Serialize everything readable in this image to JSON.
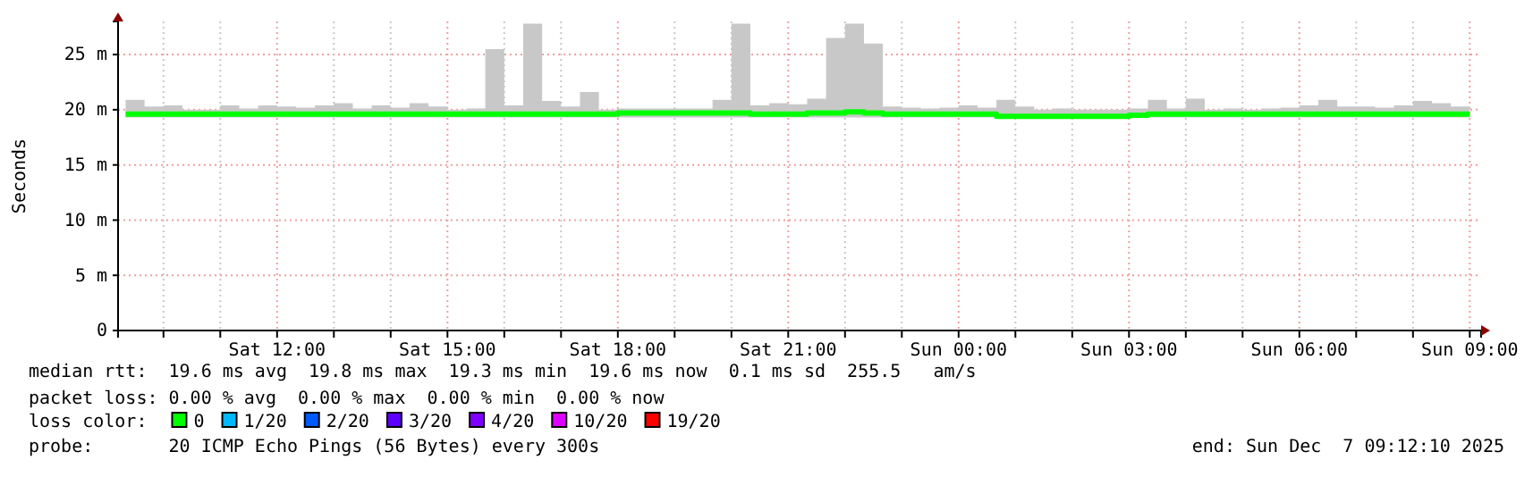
{
  "chart_data": {
    "type": "line",
    "ylabel": "Seconds",
    "legend_title": "loss color:",
    "legend": "bottom",
    "grid": true,
    "xlim": [
      "2025-12-06T09:12",
      "2025-12-07T09:12"
    ],
    "xticks": [
      {
        "value": "2025-12-06T10:00",
        "label": null
      },
      {
        "value": "2025-12-06T11:00",
        "label": null
      },
      {
        "value": "2025-12-06T12:00",
        "label": "Sat 12:00"
      },
      {
        "value": "2025-12-06T13:00",
        "label": null
      },
      {
        "value": "2025-12-06T14:00",
        "label": null
      },
      {
        "value": "2025-12-06T15:00",
        "label": "Sat 15:00"
      },
      {
        "value": "2025-12-06T16:00",
        "label": null
      },
      {
        "value": "2025-12-06T17:00",
        "label": null
      },
      {
        "value": "2025-12-06T18:00",
        "label": "Sat 18:00"
      },
      {
        "value": "2025-12-06T19:00",
        "label": null
      },
      {
        "value": "2025-12-06T20:00",
        "label": null
      },
      {
        "value": "2025-12-06T21:00",
        "label": "Sat 21:00"
      },
      {
        "value": "2025-12-06T22:00",
        "label": null
      },
      {
        "value": "2025-12-06T23:00",
        "label": null
      },
      {
        "value": "2025-12-07T00:00",
        "label": "Sun 00:00"
      },
      {
        "value": "2025-12-07T01:00",
        "label": null
      },
      {
        "value": "2025-12-07T02:00",
        "label": null
      },
      {
        "value": "2025-12-07T03:00",
        "label": "Sun 03:00"
      },
      {
        "value": "2025-12-07T04:00",
        "label": null
      },
      {
        "value": "2025-12-07T05:00",
        "label": null
      },
      {
        "value": "2025-12-07T06:00",
        "label": "Sun 06:00"
      },
      {
        "value": "2025-12-07T07:00",
        "label": null
      },
      {
        "value": "2025-12-07T08:00",
        "label": null
      },
      {
        "value": "2025-12-07T09:00",
        "label": "Sun 09:00"
      }
    ],
    "ylim": [
      0,
      28
    ],
    "yticks": [
      {
        "value": 0,
        "label": "0"
      },
      {
        "value": 5,
        "label": "5 m"
      },
      {
        "value": 10,
        "label": "10 m"
      },
      {
        "value": 15,
        "label": "15 m"
      },
      {
        "value": 20,
        "label": "20 m"
      },
      {
        "value": 25,
        "label": "25 m"
      }
    ],
    "x": [
      "2025-12-06T09:20",
      "2025-12-06T09:40",
      "2025-12-06T10:00",
      "2025-12-06T10:20",
      "2025-12-06T10:40",
      "2025-12-06T11:00",
      "2025-12-06T11:20",
      "2025-12-06T11:40",
      "2025-12-06T12:00",
      "2025-12-06T12:20",
      "2025-12-06T12:40",
      "2025-12-06T13:00",
      "2025-12-06T13:20",
      "2025-12-06T13:40",
      "2025-12-06T14:00",
      "2025-12-06T14:20",
      "2025-12-06T14:40",
      "2025-12-06T15:00",
      "2025-12-06T15:20",
      "2025-12-06T15:40",
      "2025-12-06T16:00",
      "2025-12-06T16:20",
      "2025-12-06T16:40",
      "2025-12-06T17:00",
      "2025-12-06T17:20",
      "2025-12-06T17:40",
      "2025-12-06T18:00",
      "2025-12-06T18:20",
      "2025-12-06T18:40",
      "2025-12-06T19:00",
      "2025-12-06T19:20",
      "2025-12-06T19:40",
      "2025-12-06T20:00",
      "2025-12-06T20:20",
      "2025-12-06T20:40",
      "2025-12-06T21:00",
      "2025-12-06T21:20",
      "2025-12-06T21:40",
      "2025-12-06T22:00",
      "2025-12-06T22:20",
      "2025-12-06T22:40",
      "2025-12-06T23:00",
      "2025-12-06T23:20",
      "2025-12-06T23:40",
      "2025-12-07T00:00",
      "2025-12-07T00:20",
      "2025-12-07T00:40",
      "2025-12-07T01:00",
      "2025-12-07T01:20",
      "2025-12-07T01:40",
      "2025-12-07T02:00",
      "2025-12-07T02:20",
      "2025-12-07T02:40",
      "2025-12-07T03:00",
      "2025-12-07T03:20",
      "2025-12-07T03:40",
      "2025-12-07T04:00",
      "2025-12-07T04:20",
      "2025-12-07T04:40",
      "2025-12-07T05:00",
      "2025-12-07T05:20",
      "2025-12-07T05:40",
      "2025-12-07T06:00",
      "2025-12-07T06:20",
      "2025-12-07T06:40",
      "2025-12-07T07:00",
      "2025-12-07T07:20",
      "2025-12-07T07:40",
      "2025-12-07T08:00",
      "2025-12-07T08:20",
      "2025-12-07T08:40",
      "2025-12-07T09:00"
    ],
    "series": [
      {
        "name": "0",
        "color": "#00ff00",
        "values": [
          19.6,
          19.6,
          19.6,
          19.6,
          19.6,
          19.6,
          19.6,
          19.6,
          19.6,
          19.6,
          19.6,
          19.6,
          19.6,
          19.6,
          19.6,
          19.6,
          19.6,
          19.6,
          19.6,
          19.6,
          19.6,
          19.6,
          19.6,
          19.6,
          19.6,
          19.6,
          19.7,
          19.7,
          19.7,
          19.7,
          19.7,
          19.7,
          19.7,
          19.6,
          19.6,
          19.6,
          19.7,
          19.7,
          19.8,
          19.7,
          19.6,
          19.6,
          19.6,
          19.6,
          19.6,
          19.6,
          19.4,
          19.4,
          19.4,
          19.4,
          19.4,
          19.4,
          19.4,
          19.5,
          19.6,
          19.6,
          19.6,
          19.6,
          19.6,
          19.6,
          19.6,
          19.6,
          19.6,
          19.6,
          19.6,
          19.6,
          19.6,
          19.6,
          19.6,
          19.6,
          19.6,
          19.6
        ],
        "lower": [
          19.3,
          19.3,
          19.3,
          19.3,
          19.3,
          19.3,
          19.3,
          19.3,
          19.3,
          19.3,
          19.3,
          19.3,
          19.3,
          19.3,
          19.3,
          19.3,
          19.3,
          19.3,
          19.3,
          19.3,
          19.3,
          19.3,
          19.3,
          19.3,
          19.3,
          19.3,
          19.3,
          19.3,
          19.3,
          19.3,
          19.3,
          19.3,
          19.3,
          19.3,
          19.3,
          19.3,
          19.3,
          19.3,
          19.3,
          19.3,
          19.3,
          19.3,
          19.3,
          19.3,
          19.3,
          19.3,
          19.2,
          19.2,
          19.2,
          19.2,
          19.2,
          19.2,
          19.2,
          19.3,
          19.3,
          19.3,
          19.3,
          19.3,
          19.3,
          19.3,
          19.3,
          19.3,
          19.3,
          19.3,
          19.3,
          19.3,
          19.3,
          19.3,
          19.3,
          19.3,
          19.3,
          19.3
        ],
        "upper": [
          20.9,
          20.3,
          20.4,
          20.0,
          20.0,
          20.4,
          20.1,
          20.4,
          20.3,
          20.2,
          20.4,
          20.6,
          20.1,
          20.4,
          20.2,
          20.6,
          20.3,
          20.0,
          20.1,
          25.5,
          20.4,
          27.8,
          20.8,
          20.3,
          21.6,
          20.0,
          20.1,
          20.1,
          20.1,
          20.1,
          20.1,
          20.9,
          27.8,
          20.4,
          20.6,
          20.5,
          21.0,
          26.5,
          27.8,
          26.0,
          20.3,
          20.2,
          20.1,
          20.2,
          20.4,
          20.2,
          20.9,
          20.3,
          20.0,
          20.1,
          20.0,
          20.0,
          20.0,
          20.1,
          20.9,
          20.1,
          21.0,
          20.0,
          20.1,
          20.0,
          20.1,
          20.2,
          20.4,
          20.9,
          20.3,
          20.3,
          20.2,
          20.4,
          20.8,
          20.6,
          20.3,
          20.0
        ]
      },
      {
        "name": "1/20",
        "color": "#00b8ff",
        "values": [
          null,
          null,
          null,
          null,
          null,
          null,
          null,
          null,
          null,
          null,
          null,
          null,
          null,
          null,
          null,
          null,
          null,
          null,
          null,
          null,
          null,
          null,
          null,
          null,
          null,
          null,
          null,
          null,
          null,
          null,
          null,
          null,
          null,
          null,
          null,
          null,
          null,
          null,
          null,
          null,
          null,
          null,
          null,
          null,
          null,
          null,
          null,
          null,
          null,
          null,
          null,
          null,
          null,
          null,
          null,
          null,
          null,
          null,
          null,
          null,
          null,
          null,
          null,
          null,
          null,
          null,
          null,
          null,
          null,
          null,
          null,
          null
        ]
      },
      {
        "name": "2/20",
        "color": "#0059ff",
        "values": [
          null,
          null,
          null,
          null,
          null,
          null,
          null,
          null,
          null,
          null,
          null,
          null,
          null,
          null,
          null,
          null,
          null,
          null,
          null,
          null,
          null,
          null,
          null,
          null,
          null,
          null,
          null,
          null,
          null,
          null,
          null,
          null,
          null,
          null,
          null,
          null,
          null,
          null,
          null,
          null,
          null,
          null,
          null,
          null,
          null,
          null,
          null,
          null,
          null,
          null,
          null,
          null,
          null,
          null,
          null,
          null,
          null,
          null,
          null,
          null,
          null,
          null,
          null,
          null,
          null,
          null,
          null,
          null,
          null,
          null,
          null,
          null
        ]
      },
      {
        "name": "3/20",
        "color": "#5e00ff",
        "values": [
          null,
          null,
          null,
          null,
          null,
          null,
          null,
          null,
          null,
          null,
          null,
          null,
          null,
          null,
          null,
          null,
          null,
          null,
          null,
          null,
          null,
          null,
          null,
          null,
          null,
          null,
          null,
          null,
          null,
          null,
          null,
          null,
          null,
          null,
          null,
          null,
          null,
          null,
          null,
          null,
          null,
          null,
          null,
          null,
          null,
          null,
          null,
          null,
          null,
          null,
          null,
          null,
          null,
          null,
          null,
          null,
          null,
          null,
          null,
          null,
          null,
          null,
          null,
          null,
          null,
          null,
          null,
          null,
          null,
          null,
          null,
          null
        ]
      },
      {
        "name": "4/20",
        "color": "#7e00ff",
        "values": [
          null,
          null,
          null,
          null,
          null,
          null,
          null,
          null,
          null,
          null,
          null,
          null,
          null,
          null,
          null,
          null,
          null,
          null,
          null,
          null,
          null,
          null,
          null,
          null,
          null,
          null,
          null,
          null,
          null,
          null,
          null,
          null,
          null,
          null,
          null,
          null,
          null,
          null,
          null,
          null,
          null,
          null,
          null,
          null,
          null,
          null,
          null,
          null,
          null,
          null,
          null,
          null,
          null,
          null,
          null,
          null,
          null,
          null,
          null,
          null,
          null,
          null,
          null,
          null,
          null,
          null,
          null,
          null,
          null,
          null,
          null,
          null
        ]
      },
      {
        "name": "10/20",
        "color": "#dd00ff",
        "values": [
          null,
          null,
          null,
          null,
          null,
          null,
          null,
          null,
          null,
          null,
          null,
          null,
          null,
          null,
          null,
          null,
          null,
          null,
          null,
          null,
          null,
          null,
          null,
          null,
          null,
          null,
          null,
          null,
          null,
          null,
          null,
          null,
          null,
          null,
          null,
          null,
          null,
          null,
          null,
          null,
          null,
          null,
          null,
          null,
          null,
          null,
          null,
          null,
          null,
          null,
          null,
          null,
          null,
          null,
          null,
          null,
          null,
          null,
          null,
          null,
          null,
          null,
          null,
          null,
          null,
          null,
          null,
          null,
          null,
          null,
          null,
          null
        ]
      },
      {
        "name": "19/20",
        "color": "#ff0000",
        "values": [
          null,
          null,
          null,
          null,
          null,
          null,
          null,
          null,
          null,
          null,
          null,
          null,
          null,
          null,
          null,
          null,
          null,
          null,
          null,
          null,
          null,
          null,
          null,
          null,
          null,
          null,
          null,
          null,
          null,
          null,
          null,
          null,
          null,
          null,
          null,
          null,
          null,
          null,
          null,
          null,
          null,
          null,
          null,
          null,
          null,
          null,
          null,
          null,
          null,
          null,
          null,
          null,
          null,
          null,
          null,
          null,
          null,
          null,
          null,
          null,
          null,
          null,
          null,
          null,
          null,
          null,
          null,
          null,
          null,
          null,
          null,
          null
        ]
      }
    ],
    "annotations": [
      "median rtt:  19.6 ms avg  19.8 ms max  19.3 ms min  19.6 ms now  0.1 ms sd  255.5   am/s",
      "packet loss: 0.00 % avg  0.00 % max  0.00 % min  0.00 % now",
      "probe:       20 ICMP Echo Pings (56 Bytes) every 300s",
      "end: Sun Dec  7 09:12:10 2025"
    ]
  }
}
